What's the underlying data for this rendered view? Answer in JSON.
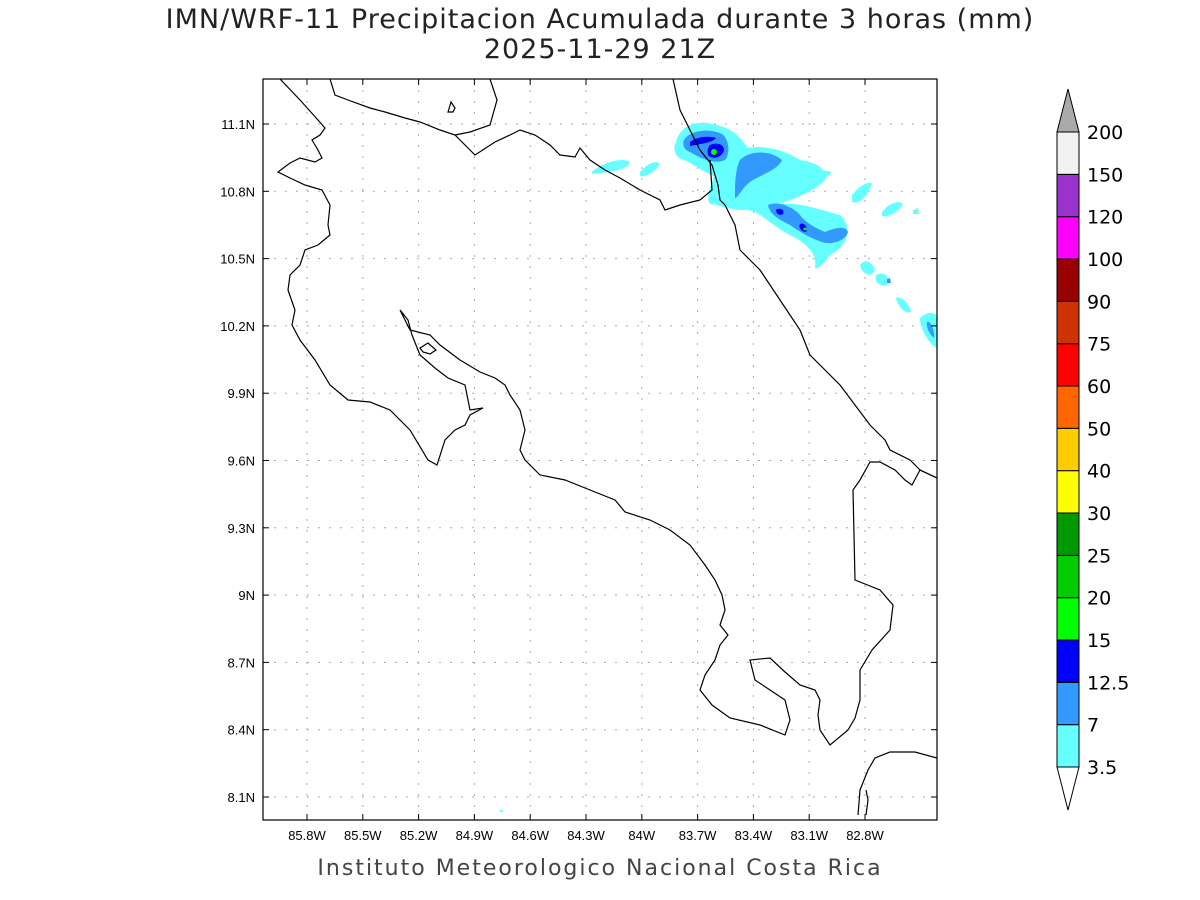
{
  "title": "IMN/WRF-11 Precipitacion Acumulada durante 3 horas (mm)",
  "subtitle": "2025-11-29 21Z",
  "footer": "Instituto Meteorologico Nacional Costa Rica",
  "map": {
    "lon_ticks": [
      {
        "value": -85.8,
        "label": "85.8W"
      },
      {
        "value": -85.5,
        "label": "85.5W"
      },
      {
        "value": -85.2,
        "label": "85.2W"
      },
      {
        "value": -84.9,
        "label": "84.9W"
      },
      {
        "value": -84.6,
        "label": "84.6W"
      },
      {
        "value": -84.3,
        "label": "84.3W"
      },
      {
        "value": -84.0,
        "label": "84W"
      },
      {
        "value": -83.7,
        "label": "83.7W"
      },
      {
        "value": -83.4,
        "label": "83.4W"
      },
      {
        "value": -83.1,
        "label": "83.1W"
      },
      {
        "value": -82.8,
        "label": "82.8W"
      }
    ],
    "lat_ticks": [
      {
        "value": 11.1,
        "label": "11.1N"
      },
      {
        "value": 10.8,
        "label": "10.8N"
      },
      {
        "value": 10.5,
        "label": "10.5N"
      },
      {
        "value": 10.2,
        "label": "10.2N"
      },
      {
        "value": 9.9,
        "label": "9.9N"
      },
      {
        "value": 9.6,
        "label": "9.6N"
      },
      {
        "value": 9.3,
        "label": "9.3N"
      },
      {
        "value": 9.0,
        "label": "9N"
      },
      {
        "value": 8.7,
        "label": "8.7N"
      },
      {
        "value": 8.4,
        "label": "8.4N"
      },
      {
        "value": 8.1,
        "label": "8.1N"
      }
    ]
  },
  "colorbar": {
    "levels": [
      "3.5",
      "7",
      "12.5",
      "15",
      "20",
      "25",
      "30",
      "40",
      "50",
      "60",
      "75",
      "90",
      "100",
      "120",
      "150",
      "200"
    ],
    "colors": [
      "#66ffff",
      "#3399ff",
      "#0000ff",
      "#00ff00",
      "#00cc00",
      "#009900",
      "#ffff00",
      "#ffcc00",
      "#ff6600",
      "#ff0000",
      "#cc3300",
      "#990000",
      "#ff00ff",
      "#9933cc",
      "#f2f2f2"
    ],
    "over_color": "#aaaaaa",
    "under_color": "#ffffff"
  }
}
